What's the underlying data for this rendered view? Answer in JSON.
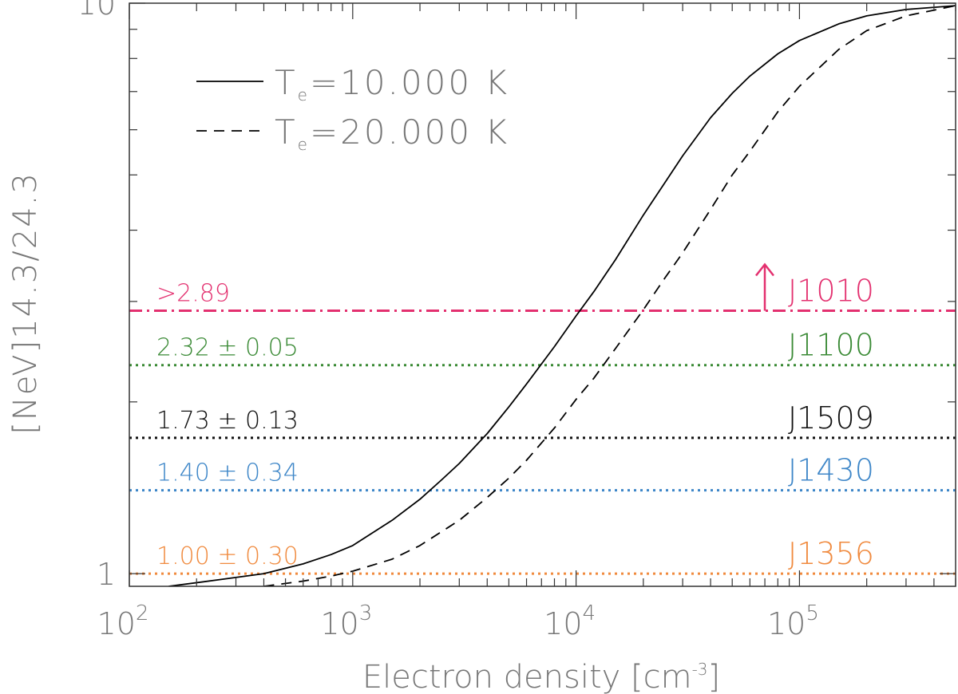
{
  "chart_data": {
    "type": "line",
    "xlabel": "Electron density [cm",
    "xlabel_sup": "-3",
    "xlabel_close": "]",
    "ylabel": "[NeV]14.3/24.3",
    "xscale": "log",
    "yscale": "log",
    "xlim": [
      100,
      500000
    ],
    "ylim": [
      0.95,
      10
    ],
    "x_ticks": [
      {
        "value": 100,
        "base": "10",
        "exp": "2"
      },
      {
        "value": 1000,
        "base": "10",
        "exp": "3"
      },
      {
        "value": 10000,
        "base": "10",
        "exp": "4"
      },
      {
        "value": 100000,
        "base": "10",
        "exp": "5"
      }
    ],
    "y_ticks": [
      {
        "value": 1,
        "label": "1"
      },
      {
        "value": 10,
        "label": "10"
      }
    ],
    "legend": {
      "placement": "top-left",
      "entries": [
        {
          "prefix": "T",
          "sub": "e",
          "text": "=10.000 K",
          "dash": "solid"
        },
        {
          "prefix": "T",
          "sub": "e",
          "text": "=20.000 K",
          "dash": "dashed"
        }
      ]
    },
    "series": [
      {
        "style": "solid",
        "x": [
          150,
          250,
          400,
          600,
          800,
          1000,
          1500,
          2000,
          2500,
          3000,
          4000,
          5000,
          6000,
          8000,
          10000,
          12000,
          15000,
          20000,
          25000,
          30000,
          40000,
          50000,
          60000,
          80000,
          100000,
          150000,
          200000,
          300000,
          500000
        ],
        "y": [
          0.95,
          0.975,
          1.0,
          1.04,
          1.08,
          1.12,
          1.24,
          1.35,
          1.46,
          1.56,
          1.76,
          1.96,
          2.15,
          2.5,
          2.83,
          3.12,
          3.55,
          4.25,
          4.85,
          5.4,
          6.3,
          6.95,
          7.45,
          8.15,
          8.6,
          9.2,
          9.5,
          9.75,
          9.9
        ]
      },
      {
        "style": "dashed",
        "x": [
          400,
          600,
          800,
          1000,
          1500,
          2000,
          3000,
          4000,
          5000,
          6000,
          8000,
          10000,
          12000,
          15000,
          20000,
          25000,
          30000,
          40000,
          50000,
          60000,
          80000,
          100000,
          150000,
          200000,
          300000,
          500000
        ],
        "y": [
          0.95,
          0.97,
          0.99,
          1.01,
          1.06,
          1.12,
          1.24,
          1.36,
          1.47,
          1.58,
          1.8,
          2.02,
          2.2,
          2.48,
          2.9,
          3.3,
          3.65,
          4.35,
          5.0,
          5.5,
          6.45,
          7.15,
          8.3,
          8.95,
          9.5,
          9.9
        ]
      }
    ],
    "reference_lines": [
      {
        "name": "J1010",
        "y": 2.89,
        "label": ">2.89",
        "color": "#e3306f",
        "dash": "dashdot",
        "arrow": true
      },
      {
        "name": "J1100",
        "y": 2.32,
        "label": "2.32 ± 0.05",
        "color": "#3a8a35",
        "dash": "dotted"
      },
      {
        "name": "J1509",
        "y": 1.73,
        "label": "1.73 ± 0.13",
        "color": "#111111",
        "dash": "dotted"
      },
      {
        "name": "J1430",
        "y": 1.4,
        "label": "1.40 ± 0.34",
        "color": "#3d86c8",
        "dash": "dotted"
      },
      {
        "name": "J1356",
        "y": 1.0,
        "label": "1.00 ± 0.30",
        "color": "#f08a3e",
        "dash": "dotted"
      }
    ],
    "colors": {
      "axis_text": "#777777",
      "frame": "#333333",
      "curves": "#000000"
    }
  }
}
